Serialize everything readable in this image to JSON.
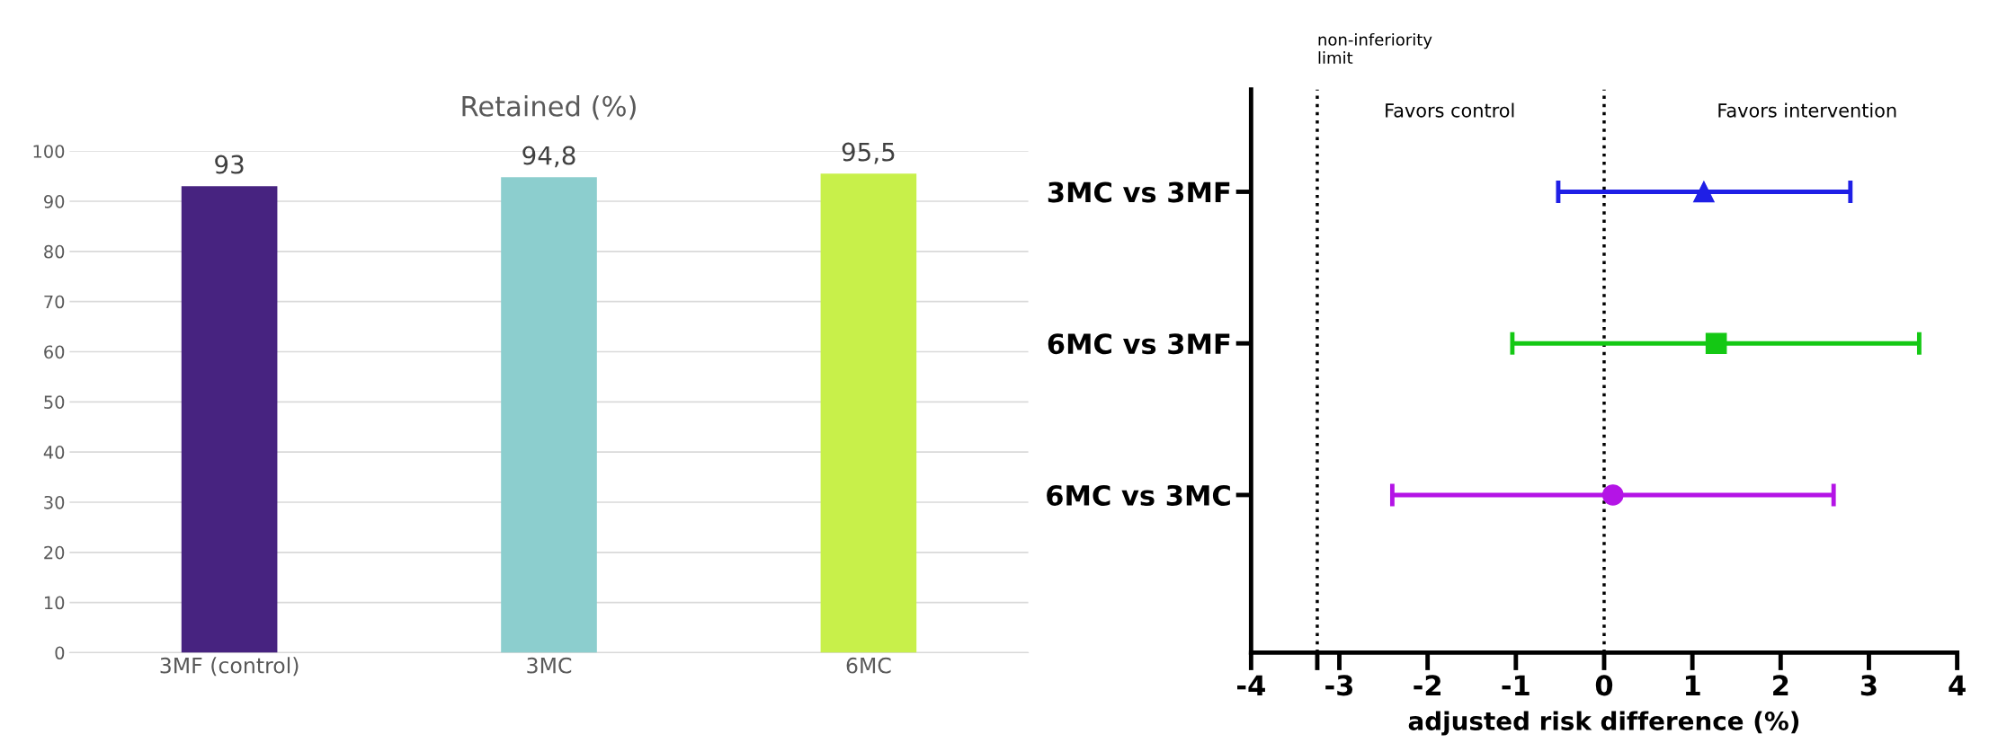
{
  "chart_data": [
    {
      "type": "bar",
      "title": "Retained (%)",
      "categories": [
        "3MF (control)",
        "3MC",
        "6MC"
      ],
      "values": [
        93,
        94.8,
        95.5
      ],
      "colors": [
        "#472380",
        "#8ccece",
        "#c8f04a"
      ],
      "value_labels": [
        "93",
        "94,8",
        "95,5"
      ],
      "ylim": [
        0,
        100
      ],
      "yticks": [
        0,
        10,
        20,
        30,
        40,
        50,
        60,
        70,
        80,
        90,
        100
      ],
      "grid": "y"
    },
    {
      "type": "scatter",
      "orientation": "horizontal",
      "xlabel": "adjusted risk difference (%)",
      "categories": [
        "3MC vs 3MF",
        "6MC vs 3MF",
        "6MC vs 3MC"
      ],
      "series": [
        {
          "color": "#1f1fe6",
          "marker": "triangle",
          "values": [
            1.13,
            null,
            null
          ],
          "errors": [
            [
              -0.52,
              2.79
            ],
            null,
            null
          ]
        },
        {
          "color": "#14c814",
          "marker": "square",
          "values": [
            null,
            1.27,
            null
          ],
          "errors": [
            null,
            [
              -1.04,
              3.57
            ],
            null
          ]
        },
        {
          "color": "#b414e6",
          "marker": "circle",
          "values": [
            null,
            null,
            0.1
          ],
          "errors": [
            null,
            null,
            [
              -2.4,
              2.6
            ]
          ]
        }
      ],
      "xlim": [
        -4,
        4
      ],
      "xticks": [
        -4,
        {
          "value": -3.25,
          "label": null
        },
        -3,
        -2,
        -1,
        0,
        1,
        2,
        3,
        4
      ],
      "ref_lines": [
        {
          "axis": "x",
          "value": -3.25,
          "label": "non-inferiority\nlimit",
          "line_style": "dotted",
          "color": "#000000"
        },
        {
          "axis": "x",
          "value": 0,
          "line_style": "dotted",
          "color": "#000000"
        }
      ],
      "annotations": [
        "Favors control",
        "Favors intervention"
      ]
    }
  ]
}
